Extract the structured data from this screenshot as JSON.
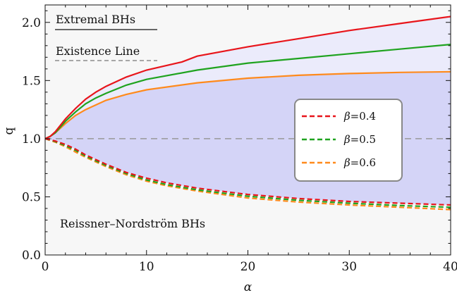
{
  "chart_data": {
    "type": "line",
    "xlabel": "α",
    "ylabel": "q",
    "xlim": [
      0,
      40
    ],
    "ylim": [
      0,
      2.15
    ],
    "x_ticks": [
      0,
      10,
      20,
      30,
      40
    ],
    "x_tick_labels": [
      "0",
      "10",
      "20",
      "30",
      "40"
    ],
    "y_ticks": [
      0,
      0.5,
      1.0,
      1.5,
      2.0
    ],
    "y_tick_labels": [
      "0.0",
      "0.5",
      "1.0",
      "1.5",
      "2.0"
    ],
    "grid": false,
    "legend_placement": "center-right",
    "reference_line": {
      "y": 1.0,
      "style": "dashed",
      "color": "#999999"
    },
    "annotations": {
      "extremal": "Extremal BHs",
      "existence": "Existence Line",
      "rn": "Reissner–Nordström BHs"
    },
    "regions": {
      "rn_fill": "#f7f7f7",
      "outer_fill": "#ebebfb",
      "inner_fill": "#d4d4f7"
    },
    "series": [
      {
        "name": "β=0.4",
        "beta_label": "=0.4",
        "color": "#e8151b",
        "upper": {
          "x": [
            0,
            0.5,
            1,
            2,
            3,
            4,
            5,
            6,
            8,
            10,
            13.5,
            15,
            20,
            25,
            30,
            35,
            40
          ],
          "y": [
            1.0,
            1.02,
            1.06,
            1.17,
            1.26,
            1.34,
            1.4,
            1.45,
            1.53,
            1.59,
            1.66,
            1.71,
            1.79,
            1.86,
            1.93,
            1.99,
            2.05
          ]
        },
        "lower": {
          "x": [
            0,
            1,
            2,
            3,
            4,
            5,
            6,
            8,
            10,
            12,
            15,
            20,
            25,
            30,
            35,
            40
          ],
          "y": [
            1.0,
            0.98,
            0.95,
            0.91,
            0.86,
            0.82,
            0.78,
            0.71,
            0.66,
            0.62,
            0.575,
            0.52,
            0.485,
            0.46,
            0.445,
            0.43
          ]
        }
      },
      {
        "name": "β=0.5",
        "beta_label": "=0.5",
        "color": "#1fa31f",
        "upper": {
          "x": [
            0,
            0.5,
            1,
            2,
            3,
            4,
            5,
            6,
            8,
            10,
            15,
            20,
            25,
            30,
            35,
            40
          ],
          "y": [
            1.0,
            1.02,
            1.05,
            1.15,
            1.23,
            1.3,
            1.35,
            1.39,
            1.46,
            1.51,
            1.59,
            1.65,
            1.69,
            1.73,
            1.77,
            1.81
          ]
        },
        "lower": {
          "x": [
            0,
            1,
            2,
            3,
            4,
            5,
            6,
            8,
            10,
            12,
            15,
            20,
            25,
            30,
            35,
            40
          ],
          "y": [
            1.0,
            0.975,
            0.94,
            0.9,
            0.85,
            0.81,
            0.77,
            0.7,
            0.645,
            0.605,
            0.56,
            0.505,
            0.47,
            0.445,
            0.425,
            0.41
          ]
        }
      },
      {
        "name": "β=0.6",
        "beta_label": "=0.6",
        "color": "#ff8a1c",
        "upper": {
          "x": [
            0,
            0.5,
            1,
            2,
            3,
            4,
            5,
            6,
            8,
            10,
            15,
            20,
            25,
            30,
            35,
            40
          ],
          "y": [
            1.0,
            1.02,
            1.05,
            1.13,
            1.2,
            1.25,
            1.29,
            1.33,
            1.38,
            1.42,
            1.48,
            1.52,
            1.545,
            1.56,
            1.57,
            1.575
          ]
        },
        "lower": {
          "x": [
            0,
            1,
            2,
            3,
            4,
            5,
            6,
            8,
            10,
            12,
            15,
            20,
            25,
            30,
            35,
            40
          ],
          "y": [
            1.0,
            0.97,
            0.93,
            0.885,
            0.84,
            0.8,
            0.76,
            0.69,
            0.635,
            0.595,
            0.55,
            0.49,
            0.455,
            0.43,
            0.41,
            0.39
          ]
        }
      }
    ]
  }
}
